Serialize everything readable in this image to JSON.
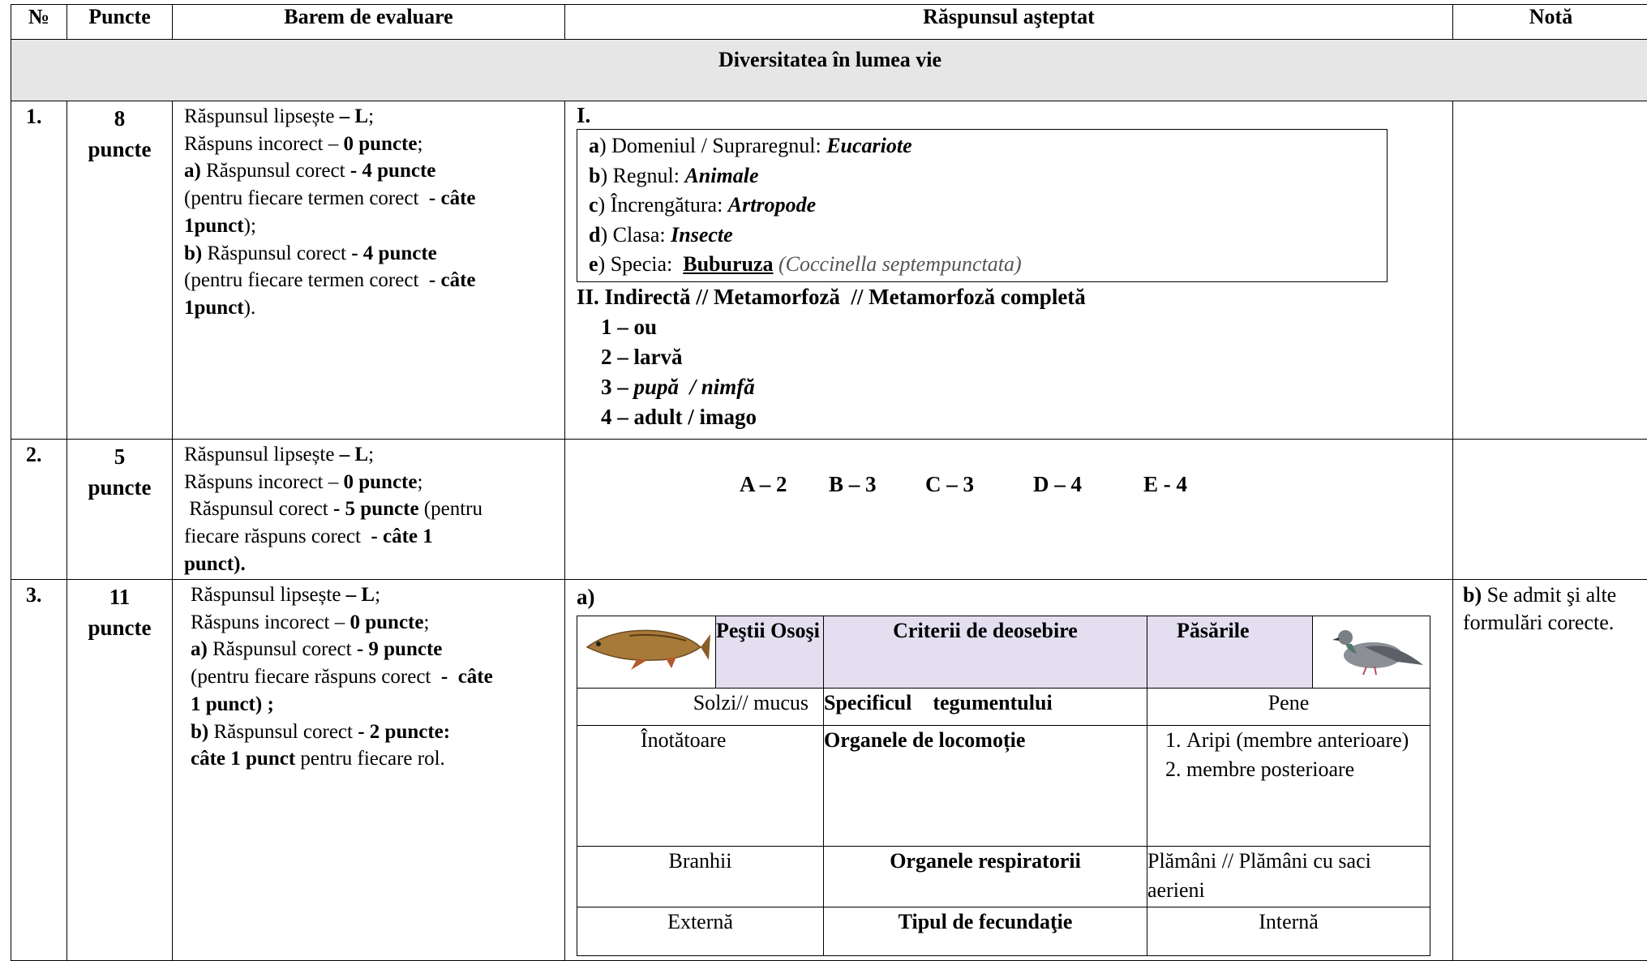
{
  "header": {
    "no": "№",
    "points": "Puncte",
    "scheme": "Barem de evaluare",
    "expected": "Răspunsul aşteptat",
    "note": "Notă"
  },
  "section": "Diversitatea în lumea vie",
  "rows": [
    {
      "no": "1.",
      "points": [
        "8",
        "puncte"
      ],
      "scheme": [
        [
          "Răspunsul lipsește ",
          "– L",
          ";"
        ],
        [
          "Răspuns incorect – ",
          "0 puncte",
          ";"
        ],
        [
          "a)",
          " Răspunsul corect ",
          "- 4 puncte"
        ],
        [
          "(pentru fiecare termen corect  ",
          "- câte"
        ],
        [
          "1punct",
          ");"
        ],
        [
          "b)",
          " Răspunsul corect ",
          "- 4 puncte"
        ],
        [
          "(pentru fiecare termen corect  ",
          "- câte"
        ],
        [
          "1punct",
          ")."
        ]
      ],
      "expected": {
        "part1": "I.",
        "taxonomy": [
          [
            "a",
            ") Domeniul / Supraregnul: ",
            "Eucariote"
          ],
          [
            "b",
            ") Regnul: ",
            "Animale"
          ],
          [
            "c",
            ") Încrengătura: ",
            "Artropode"
          ],
          [
            "d",
            ") Clasa: ",
            "Insecte"
          ],
          [
            "e",
            ") Specia:  ",
            "Buburuza",
            "(Coccinella septempunctata)"
          ]
        ],
        "part2": "II. Indirectă // Metamorfoză  // Metamorfoză completă",
        "stages": [
          [
            "1 – ou"
          ],
          [
            "2 – larvă"
          ],
          [
            "3 – ",
            "pupă  / nimfă"
          ],
          [
            "4 – adult / imago"
          ]
        ]
      }
    },
    {
      "no": "2.",
      "points": [
        "5",
        "puncte"
      ],
      "scheme": [
        [
          "Răspunsul lipsește ",
          "– L",
          ";"
        ],
        [
          "Răspuns incorect – ",
          "0 puncte",
          ";"
        ],
        [
          " Răspunsul corect ",
          "- 5 puncte",
          " (pentru"
        ],
        [
          "fiecare răspuns corect  ",
          "- câte 1"
        ],
        [
          "punct)."
        ]
      ],
      "expected": [
        "A – 2",
        "B – 3",
        "C – 3",
        "D – 4",
        "E - 4"
      ]
    },
    {
      "no": "3.",
      "points": [
        "11",
        "puncte"
      ],
      "scheme": [
        [
          "Răspunsul lipsește ",
          "– L",
          ";"
        ],
        [
          "Răspuns incorect – ",
          "0 puncte",
          ";"
        ],
        [
          "a)",
          " Răspunsul corect ",
          "- 9 puncte"
        ],
        [
          "(pentru fiecare răspuns corect  ",
          "-  câte"
        ],
        [
          "1 punct) ;"
        ],
        [
          "b)",
          " Răspunsul corect ",
          "- 2 puncte:"
        ],
        [
          "câte 1 punct",
          " pentru fiecare rol."
        ]
      ],
      "expected": {
        "label": "a)",
        "table": {
          "header": [
            "Peştii Osoşi",
            "Criterii de deosebire",
            "Păsările"
          ],
          "rows": [
            [
              "Solzi// mucus",
              "Specificul    tegumentului",
              "Pene"
            ],
            [
              "Înotătoare",
              "Organele de locomoție",
              [
                "Aripi (membre anterioare)",
                "membre posterioare"
              ]
            ],
            [
              "Branhii",
              "Organele respiratorii",
              "Plămâni // Plămâni cu saci aerieni"
            ],
            [
              "Externă",
              "Tipul de fecundaţie",
              "Internă"
            ]
          ]
        }
      },
      "note": [
        "b)",
        " Se admit şi alte formulări corecte."
      ]
    }
  ]
}
